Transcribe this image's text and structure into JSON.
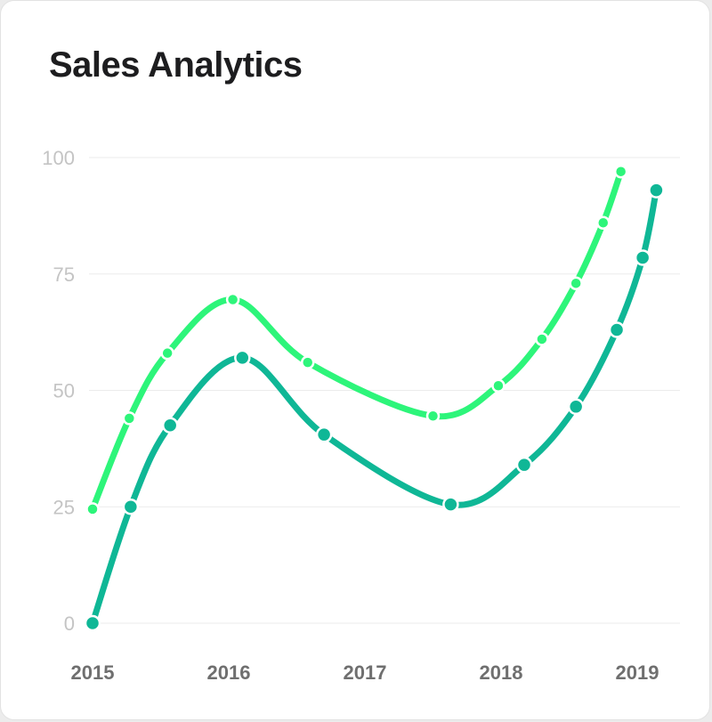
{
  "card": {
    "title": "Sales Analytics"
  },
  "chart_data": {
    "type": "line",
    "title": "Sales Analytics",
    "xlabel": "",
    "ylabel": "",
    "x_ticks": [
      "2015",
      "2016",
      "2017",
      "2018",
      "2019"
    ],
    "x_tick_values": [
      2015,
      2016,
      2017,
      2018,
      2019
    ],
    "y_ticks": [
      0,
      25,
      50,
      75,
      100
    ],
    "xlim": [
      2015,
      2019.1
    ],
    "ylim": [
      0,
      100
    ],
    "grid": true,
    "legend": "none",
    "smooth": true,
    "series": [
      {
        "color": "#2df57a",
        "x": [
          2015,
          2015.27,
          2015.55,
          2016.03,
          2016.58,
          2017.5,
          2017.98,
          2018.3,
          2018.55,
          2018.75,
          2018.88
        ],
        "values": [
          24.5,
          44,
          58,
          69.5,
          56,
          44.5,
          51,
          61,
          73,
          86,
          97
        ]
      },
      {
        "color": "#0fb796",
        "x": [
          2015,
          2015.28,
          2015.57,
          2016.1,
          2016.7,
          2017.63,
          2018.17,
          2018.55,
          2018.85,
          2019.04,
          2019.14
        ],
        "values": [
          0,
          25,
          42.5,
          57,
          40.5,
          25.5,
          34,
          46.5,
          63,
          78.5,
          93
        ]
      }
    ]
  }
}
